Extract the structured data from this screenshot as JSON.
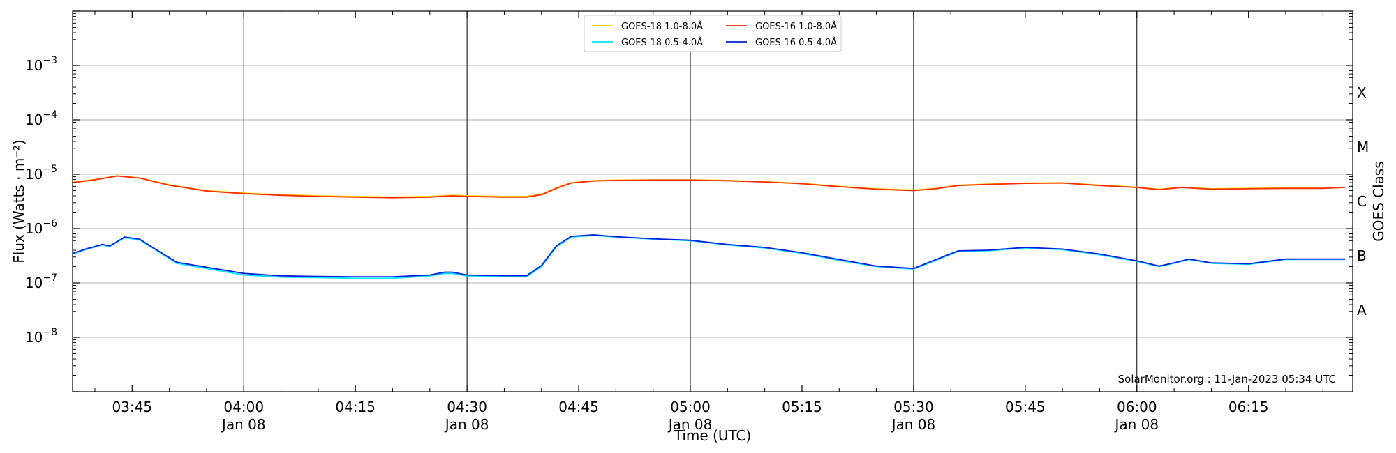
{
  "chart_data": {
    "type": "line",
    "title": "",
    "xlabel": "Time (UTC)",
    "ylabel": "Flux (Watts · m⁻²)",
    "y2label": "GOES Class",
    "yscale": "log",
    "xlim": [
      "03:37",
      "06:29"
    ],
    "ylim": [
      1e-09,
      0.01
    ],
    "y_ticks": [
      {
        "value": 1e-08,
        "base": "10",
        "exp": "−8"
      },
      {
        "value": 1e-07,
        "base": "10",
        "exp": "−7"
      },
      {
        "value": 1e-06,
        "base": "10",
        "exp": "−6"
      },
      {
        "value": 1e-05,
        "base": "10",
        "exp": "−5"
      },
      {
        "value": 0.0001,
        "base": "10",
        "exp": "−4"
      },
      {
        "value": 0.001,
        "base": "10",
        "exp": "−3"
      }
    ],
    "x_ticks": [
      {
        "time": "03:45",
        "label": "03:45",
        "date": ""
      },
      {
        "time": "04:00",
        "label": "04:00",
        "date": "Jan 08"
      },
      {
        "time": "04:15",
        "label": "04:15",
        "date": ""
      },
      {
        "time": "04:30",
        "label": "04:30",
        "date": "Jan 08"
      },
      {
        "time": "04:45",
        "label": "04:45",
        "date": ""
      },
      {
        "time": "05:00",
        "label": "05:00",
        "date": "Jan 08"
      },
      {
        "time": "05:15",
        "label": "05:15",
        "date": ""
      },
      {
        "time": "05:30",
        "label": "05:30",
        "date": "Jan 08"
      },
      {
        "time": "05:45",
        "label": "05:45",
        "date": ""
      },
      {
        "time": "06:00",
        "label": "06:00",
        "date": "Jan 08"
      },
      {
        "time": "06:15",
        "label": "06:15",
        "date": ""
      }
    ],
    "vertical_lines": [
      "04:00",
      "04:30",
      "05:00",
      "05:30",
      "06:00"
    ],
    "goes_classes": [
      {
        "label": "A",
        "lower": 1e-08,
        "upper": 1e-07
      },
      {
        "label": "B",
        "lower": 1e-07,
        "upper": 1e-06
      },
      {
        "label": "C",
        "lower": 1e-06,
        "upper": 1e-05
      },
      {
        "label": "M",
        "lower": 1e-05,
        "upper": 0.0001
      },
      {
        "label": "X",
        "lower": 0.0001,
        "upper": 0.001
      }
    ],
    "grid": true,
    "legend_position": "top-center",
    "credit": "SolarMonitor.org : 11-Jan-2023 05:34 UTC",
    "series": [
      {
        "name": "GOES-18 1.0-8.0Å",
        "color": "#ffd700",
        "x": [
          "03:37",
          "03:40",
          "03:43",
          "03:46",
          "03:50",
          "03:55",
          "04:00",
          "04:05",
          "04:10",
          "04:15",
          "04:20",
          "04:25",
          "04:28",
          "04:30",
          "04:35",
          "04:38",
          "04:40",
          "04:42",
          "04:44",
          "04:47",
          "04:50",
          "04:55",
          "05:00",
          "05:05",
          "05:10",
          "05:15",
          "05:20",
          "05:25",
          "05:30",
          "05:33",
          "05:36",
          "05:40",
          "05:45",
          "05:50",
          "05:55",
          "06:00",
          "06:03",
          "06:06",
          "06:10",
          "06:15",
          "06:20",
          "06:25",
          "06:28"
        ],
        "values": [
          7.2e-06,
          8e-06,
          9.4e-06,
          8.6e-06,
          6.4e-06,
          5e-06,
          4.5e-06,
          4.2e-06,
          4e-06,
          3.9e-06,
          3.8e-06,
          3.9e-06,
          4.1e-06,
          4e-06,
          3.9e-06,
          3.9e-06,
          4.3e-06,
          5.6e-06,
          7e-06,
          7.6e-06,
          7.8e-06,
          7.9e-06,
          7.9e-06,
          7.7e-06,
          7.3e-06,
          6.8e-06,
          6e-06,
          5.4e-06,
          5.1e-06,
          5.5e-06,
          6.3e-06,
          6.6e-06,
          6.9e-06,
          7e-06,
          6.3e-06,
          5.8e-06,
          5.3e-06,
          5.8e-06,
          5.4e-06,
          5.5e-06,
          5.6e-06,
          5.6e-06,
          5.8e-06
        ]
      },
      {
        "name": "GOES-18 0.5-4.0Å",
        "color": "#00e5ff",
        "x": [
          "03:37",
          "03:39",
          "03:41",
          "03:42",
          "03:44",
          "03:46",
          "03:48",
          "03:51",
          "04:00",
          "04:05",
          "04:10",
          "04:15",
          "04:20",
          "04:25",
          "04:27",
          "04:28",
          "04:30",
          "04:35",
          "04:38",
          "04:40",
          "04:42",
          "04:44",
          "04:47",
          "04:50",
          "04:55",
          "05:00",
          "05:05",
          "05:10",
          "05:15",
          "05:20",
          "05:25",
          "05:30",
          "05:33",
          "05:36",
          "05:40",
          "05:45",
          "05:50",
          "05:55",
          "06:00",
          "06:03",
          "06:05",
          "06:07",
          "06:10",
          "06:15",
          "06:20",
          "06:25",
          "06:28"
        ],
        "values": [
          3.4e-07,
          4.2e-07,
          5e-07,
          4.7e-07,
          6.8e-07,
          6.2e-07,
          4.2e-07,
          2.3e-07,
          1.4e-07,
          1.28e-07,
          1.25e-07,
          1.22e-07,
          1.22e-07,
          1.35e-07,
          1.5e-07,
          1.5e-07,
          1.35e-07,
          1.3e-07,
          1.3e-07,
          2e-07,
          4.6e-07,
          7e-07,
          7.5e-07,
          7e-07,
          6.4e-07,
          6e-07,
          5e-07,
          4.4e-07,
          3.5e-07,
          2.6e-07,
          2e-07,
          1.8e-07,
          2.6e-07,
          3.8e-07,
          3.9e-07,
          4.4e-07,
          4.1e-07,
          3.3e-07,
          2.5e-07,
          2e-07,
          2.3e-07,
          2.7e-07,
          2.3e-07,
          2.2e-07,
          2.7e-07,
          2.7e-07,
          2.7e-07
        ]
      },
      {
        "name": "GOES-16 1.0-8.0Å",
        "color": "#ff2a00",
        "x": [
          "03:37",
          "03:40",
          "03:43",
          "03:46",
          "03:50",
          "03:55",
          "04:00",
          "04:05",
          "04:10",
          "04:15",
          "04:20",
          "04:25",
          "04:28",
          "04:30",
          "04:35",
          "04:38",
          "04:40",
          "04:42",
          "04:44",
          "04:47",
          "04:50",
          "04:55",
          "05:00",
          "05:05",
          "05:10",
          "05:15",
          "05:20",
          "05:25",
          "05:30",
          "05:33",
          "05:36",
          "05:40",
          "05:45",
          "05:50",
          "05:55",
          "06:00",
          "06:03",
          "06:06",
          "06:10",
          "06:15",
          "06:20",
          "06:25",
          "06:28"
        ],
        "values": [
          7e-06,
          7.9e-06,
          9.3e-06,
          8.5e-06,
          6.3e-06,
          4.9e-06,
          4.4e-06,
          4.1e-06,
          3.9e-06,
          3.8e-06,
          3.7e-06,
          3.8e-06,
          4e-06,
          3.9e-06,
          3.8e-06,
          3.8e-06,
          4.2e-06,
          5.5e-06,
          6.9e-06,
          7.5e-06,
          7.7e-06,
          7.8e-06,
          7.8e-06,
          7.6e-06,
          7.2e-06,
          6.7e-06,
          5.9e-06,
          5.3e-06,
          5e-06,
          5.4e-06,
          6.2e-06,
          6.5e-06,
          6.8e-06,
          6.9e-06,
          6.2e-06,
          5.7e-06,
          5.2e-06,
          5.7e-06,
          5.3e-06,
          5.4e-06,
          5.5e-06,
          5.5e-06,
          5.7e-06
        ]
      },
      {
        "name": "GOES-16 0.5-4.0Å",
        "color": "#0022dd",
        "x": [
          "03:37",
          "03:39",
          "03:41",
          "03:42",
          "03:44",
          "03:46",
          "03:48",
          "03:51",
          "04:00",
          "04:05",
          "04:10",
          "04:15",
          "04:20",
          "04:25",
          "04:27",
          "04:28",
          "04:30",
          "04:35",
          "04:38",
          "04:40",
          "04:42",
          "04:44",
          "04:47",
          "04:50",
          "04:55",
          "05:00",
          "05:05",
          "05:10",
          "05:15",
          "05:20",
          "05:25",
          "05:30",
          "05:33",
          "05:36",
          "05:40",
          "05:45",
          "05:50",
          "05:55",
          "06:00",
          "06:03",
          "06:05",
          "06:07",
          "06:10",
          "06:15",
          "06:20",
          "06:25",
          "06:28"
        ],
        "values": [
          3.5e-07,
          4.3e-07,
          5.1e-07,
          4.8e-07,
          7e-07,
          6.4e-07,
          4.3e-07,
          2.4e-07,
          1.5e-07,
          1.35e-07,
          1.32e-07,
          1.3e-07,
          1.3e-07,
          1.4e-07,
          1.58e-07,
          1.58e-07,
          1.4e-07,
          1.36e-07,
          1.36e-07,
          2.1e-07,
          4.8e-07,
          7.2e-07,
          7.7e-07,
          7.1e-07,
          6.5e-07,
          6.1e-07,
          5.1e-07,
          4.5e-07,
          3.6e-07,
          2.7e-07,
          2.05e-07,
          1.85e-07,
          2.7e-07,
          3.9e-07,
          4e-07,
          4.5e-07,
          4.2e-07,
          3.4e-07,
          2.55e-07,
          2.05e-07,
          2.35e-07,
          2.75e-07,
          2.35e-07,
          2.25e-07,
          2.75e-07,
          2.75e-07,
          2.75e-07
        ]
      }
    ]
  }
}
